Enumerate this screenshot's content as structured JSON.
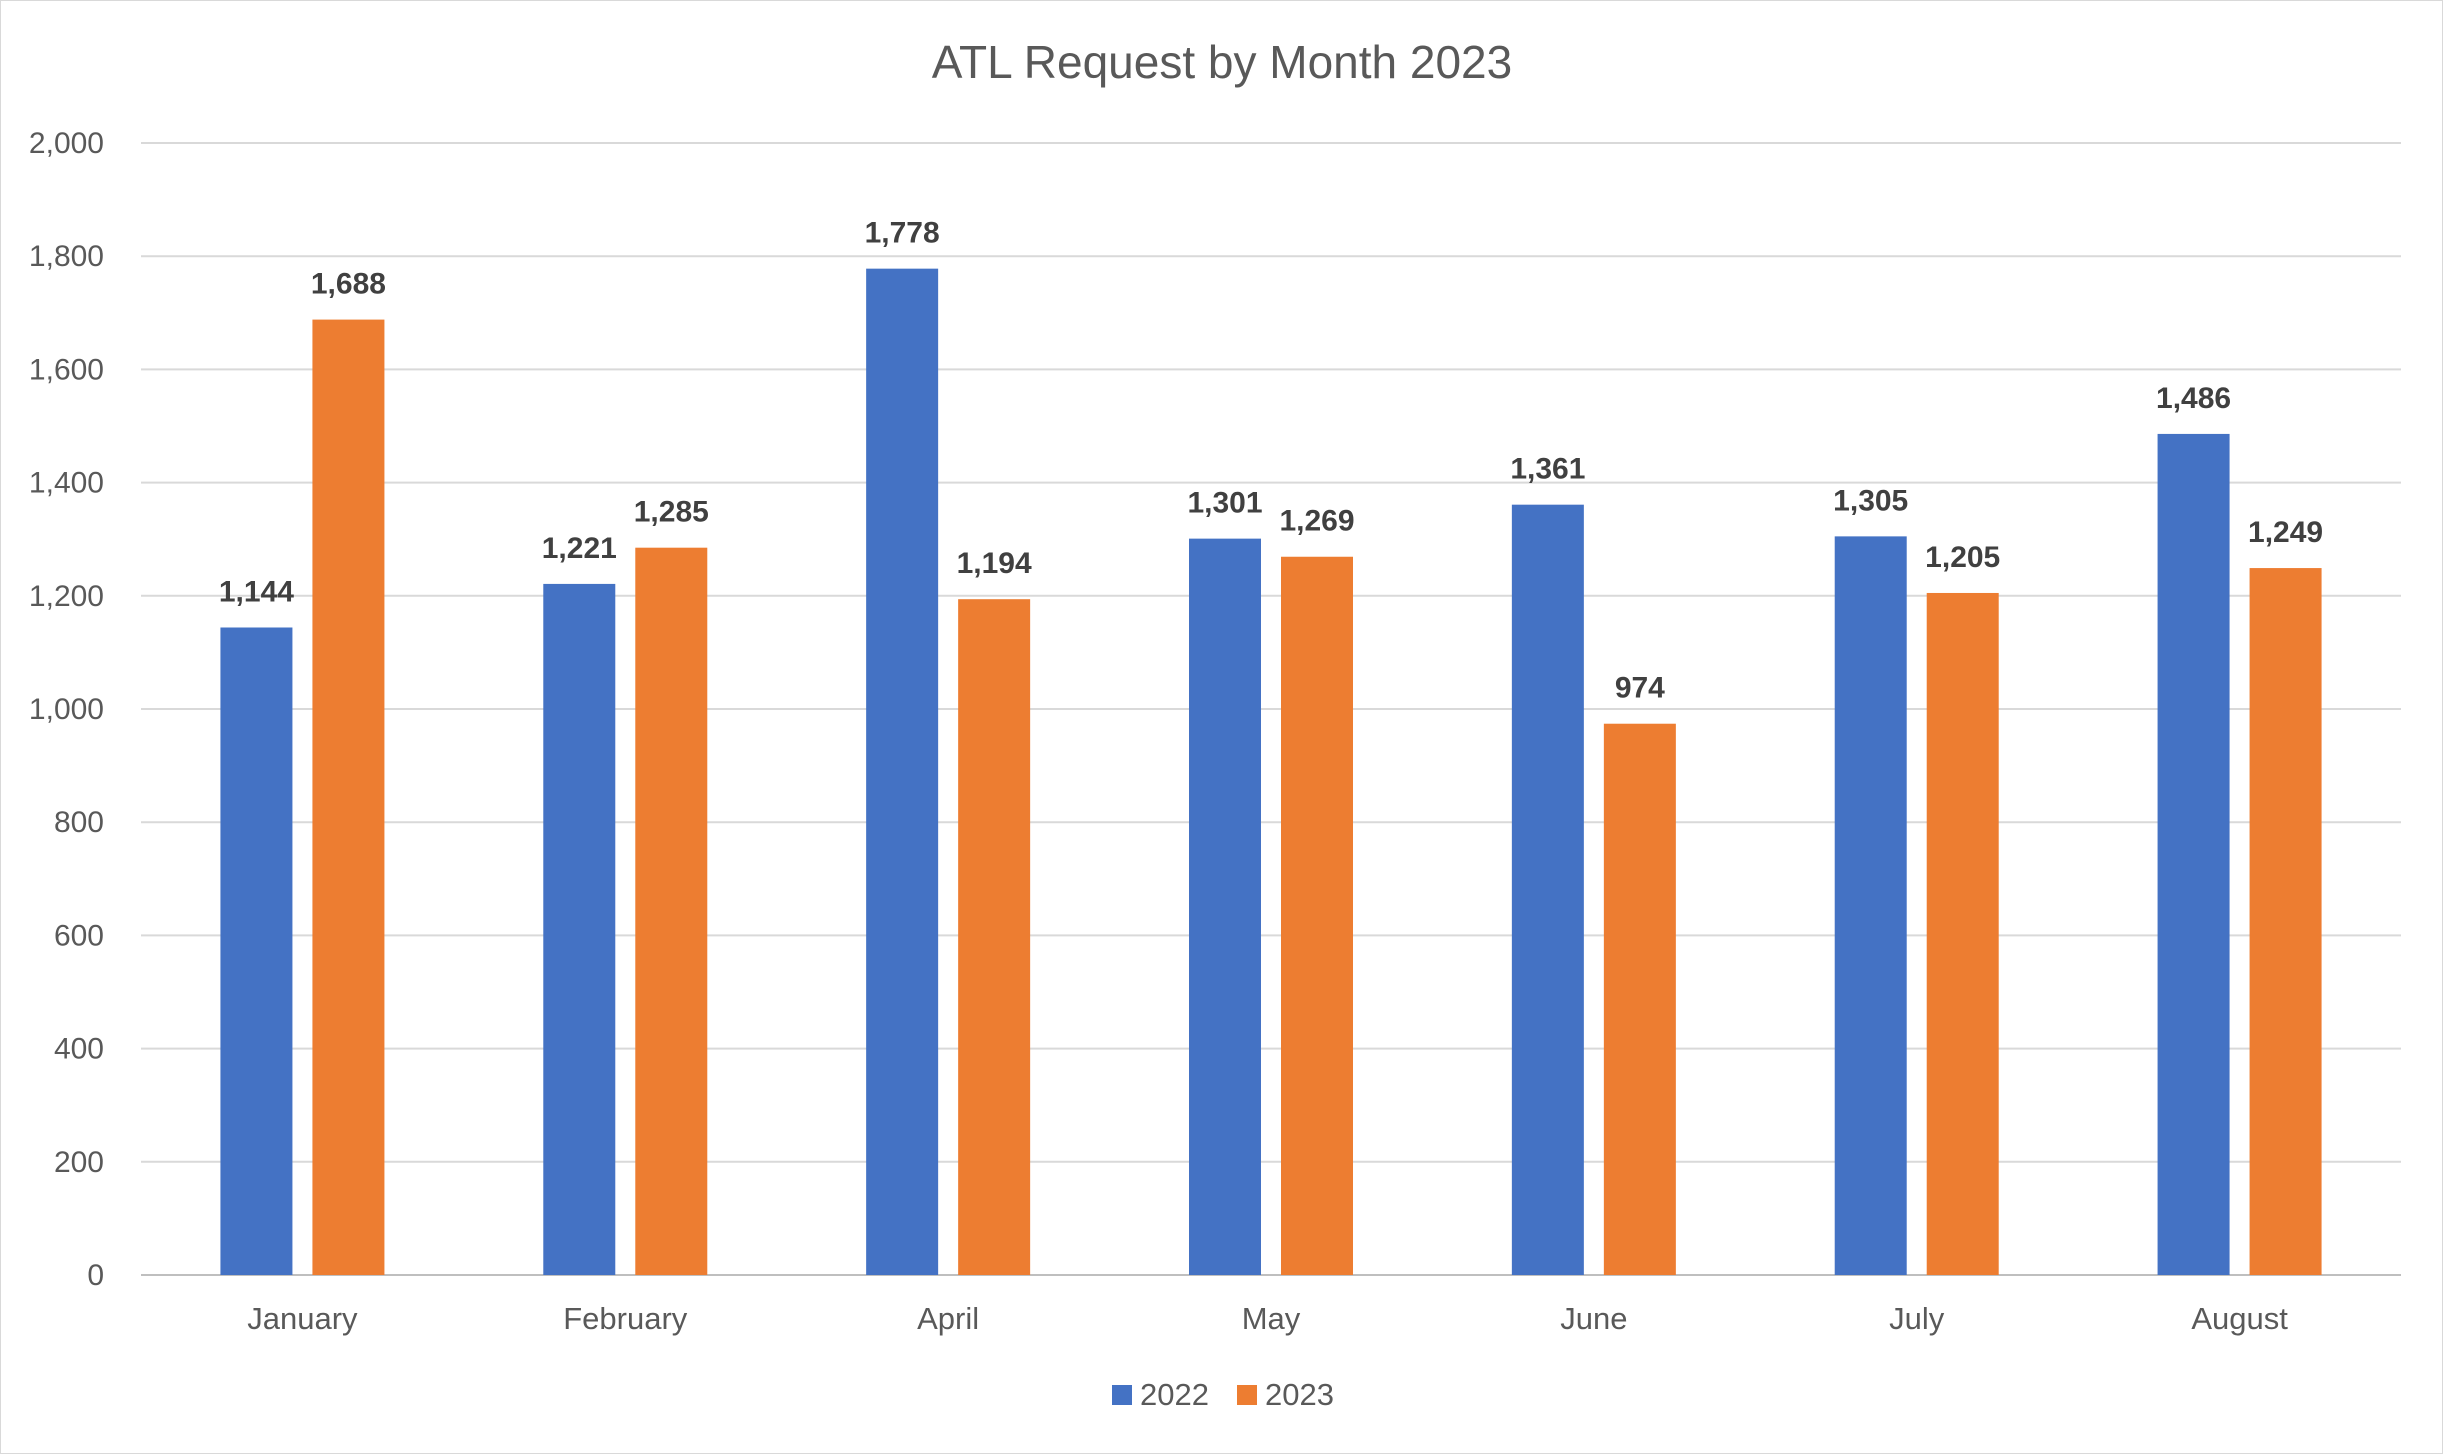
{
  "chart_data": {
    "type": "bar",
    "title": "ATL Request by Month 2023",
    "categories": [
      "January",
      "February",
      "April",
      "May",
      "June",
      "July",
      "August"
    ],
    "series": [
      {
        "name": "2022",
        "values": [
          1144,
          1221,
          1778,
          1301,
          1361,
          1305,
          1486
        ],
        "color": "#4472c4"
      },
      {
        "name": "2023",
        "values": [
          1688,
          1285,
          1194,
          1269,
          974,
          1205,
          1249
        ],
        "color": "#ed7d31"
      }
    ],
    "data_labels": [
      [
        "1,144",
        "1,221",
        "1,778",
        "1,301",
        "1,361",
        "1,305",
        "1,486"
      ],
      [
        "1,688",
        "1,285",
        "1,194",
        "1,269",
        "974",
        "1,205",
        "1,249"
      ]
    ],
    "ylim": [
      0,
      2000
    ],
    "yticks": [
      "0",
      "200",
      "400",
      "600",
      "800",
      "1,000",
      "1,200",
      "1,400",
      "1,600",
      "1,800",
      "2,000"
    ],
    "xlabel": "",
    "ylabel": "",
    "grid": true,
    "legend": "bottom"
  }
}
